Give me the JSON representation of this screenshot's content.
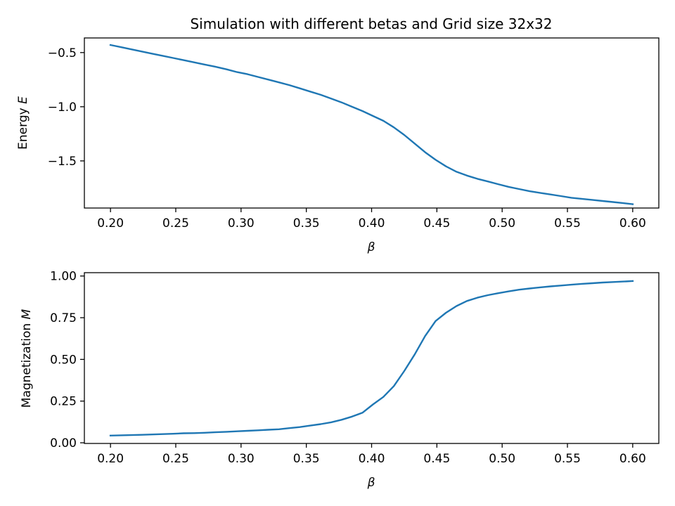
{
  "chart_data": [
    {
      "type": "line",
      "title": "Simulation with different betas and Grid size 32x32",
      "xlabel": "β",
      "ylabel_prefix": "Energy ",
      "ylabel_var": "E",
      "xlim": [
        0.18,
        0.62
      ],
      "ylim": [
        -1.935,
        -0.365
      ],
      "xticks": [
        0.2,
        0.25,
        0.3,
        0.35,
        0.4,
        0.45,
        0.5,
        0.55,
        0.6
      ],
      "xtick_labels": [
        "0.20",
        "0.25",
        "0.30",
        "0.35",
        "0.40",
        "0.45",
        "0.50",
        "0.55",
        "0.60"
      ],
      "yticks": [
        -0.5,
        -1.0,
        -1.5
      ],
      "ytick_labels": [
        "−0.5",
        "−1.0",
        "−1.5"
      ],
      "grid": false,
      "color": "#1f77b4",
      "x": [
        0.2,
        0.208,
        0.216,
        0.224,
        0.232,
        0.24,
        0.248,
        0.256,
        0.264,
        0.272,
        0.28,
        0.289,
        0.297,
        0.305,
        0.313,
        0.321,
        0.329,
        0.337,
        0.345,
        0.353,
        0.361,
        0.369,
        0.377,
        0.385,
        0.393,
        0.401,
        0.409,
        0.417,
        0.425,
        0.433,
        0.441,
        0.449,
        0.457,
        0.465,
        0.473,
        0.481,
        0.489,
        0.497,
        0.505,
        0.513,
        0.521,
        0.529,
        0.537,
        0.545,
        0.553,
        0.561,
        0.569,
        0.577,
        0.585,
        0.593,
        0.6
      ],
      "values": [
        -0.43,
        -0.45,
        -0.47,
        -0.49,
        -0.51,
        -0.53,
        -0.55,
        -0.57,
        -0.59,
        -0.61,
        -0.63,
        -0.655,
        -0.68,
        -0.7,
        -0.725,
        -0.75,
        -0.775,
        -0.8,
        -0.83,
        -0.86,
        -0.89,
        -0.925,
        -0.96,
        -1.0,
        -1.04,
        -1.085,
        -1.13,
        -1.19,
        -1.26,
        -1.34,
        -1.42,
        -1.49,
        -1.55,
        -1.6,
        -1.635,
        -1.665,
        -1.69,
        -1.715,
        -1.74,
        -1.76,
        -1.78,
        -1.795,
        -1.81,
        -1.825,
        -1.84,
        -1.85,
        -1.86,
        -1.87,
        -1.88,
        -1.89,
        -1.9
      ]
    },
    {
      "type": "line",
      "title": "",
      "xlabel": "β",
      "ylabel_prefix": "Magnetization ",
      "ylabel_var": "M",
      "xlim": [
        0.18,
        0.62
      ],
      "ylim": [
        -0.004,
        1.02
      ],
      "xticks": [
        0.2,
        0.25,
        0.3,
        0.35,
        0.4,
        0.45,
        0.5,
        0.55,
        0.6
      ],
      "xtick_labels": [
        "0.20",
        "0.25",
        "0.30",
        "0.35",
        "0.40",
        "0.45",
        "0.50",
        "0.55",
        "0.60"
      ],
      "yticks": [
        0.0,
        0.25,
        0.5,
        0.75,
        1.0
      ],
      "ytick_labels": [
        "0.00",
        "0.25",
        "0.50",
        "0.75",
        "1.00"
      ],
      "grid": false,
      "color": "#1f77b4",
      "x": [
        0.2,
        0.208,
        0.216,
        0.224,
        0.232,
        0.24,
        0.248,
        0.256,
        0.264,
        0.272,
        0.28,
        0.289,
        0.297,
        0.305,
        0.313,
        0.321,
        0.329,
        0.337,
        0.345,
        0.353,
        0.361,
        0.369,
        0.377,
        0.385,
        0.393,
        0.401,
        0.409,
        0.417,
        0.425,
        0.433,
        0.441,
        0.449,
        0.457,
        0.465,
        0.473,
        0.481,
        0.489,
        0.497,
        0.505,
        0.513,
        0.521,
        0.529,
        0.537,
        0.545,
        0.553,
        0.561,
        0.569,
        0.577,
        0.585,
        0.593,
        0.6
      ],
      "values": [
        0.043,
        0.045,
        0.046,
        0.048,
        0.05,
        0.052,
        0.054,
        0.057,
        0.058,
        0.06,
        0.063,
        0.066,
        0.069,
        0.072,
        0.075,
        0.078,
        0.081,
        0.088,
        0.094,
        0.103,
        0.112,
        0.123,
        0.138,
        0.157,
        0.18,
        0.23,
        0.275,
        0.34,
        0.43,
        0.53,
        0.64,
        0.73,
        0.78,
        0.82,
        0.85,
        0.87,
        0.885,
        0.897,
        0.908,
        0.918,
        0.925,
        0.932,
        0.938,
        0.943,
        0.948,
        0.953,
        0.957,
        0.961,
        0.964,
        0.967,
        0.97
      ]
    }
  ]
}
